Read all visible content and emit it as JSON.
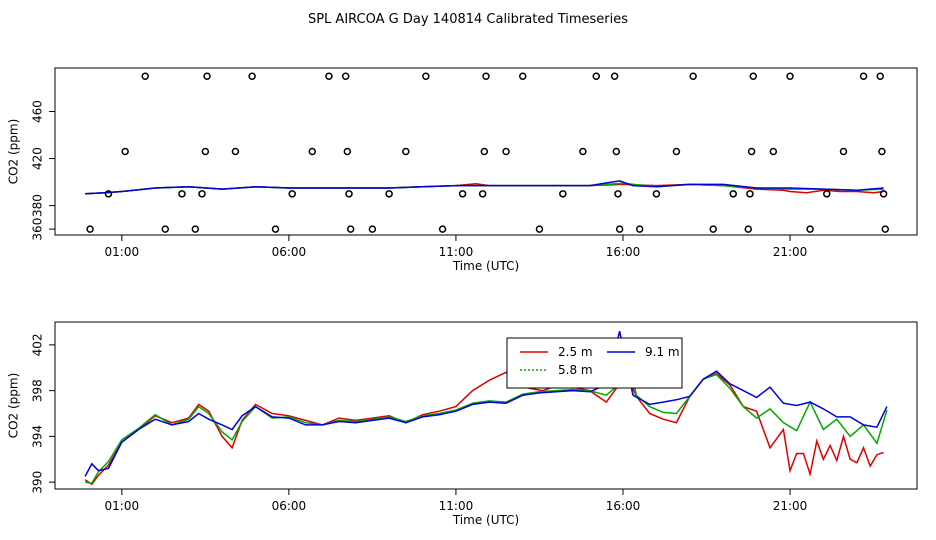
{
  "figure": {
    "title": "SPL AIRCOA G  Day 140814  Calibrated Timeseries"
  },
  "chart_data": [
    {
      "type": "scatter+line",
      "title": "",
      "xlabel": "Time (UTC)",
      "ylabel": "CO2 (ppm)",
      "xticks": [
        "01:00",
        "06:00",
        "11:00",
        "16:00",
        "21:00"
      ],
      "xtick_hours": [
        1,
        6,
        11,
        16,
        21
      ],
      "xlim": [
        -1.0,
        24.8
      ],
      "yticks": [
        360,
        380,
        420,
        460
      ],
      "ylim": [
        355,
        497
      ],
      "grid": false,
      "legend": "none",
      "scatter": {
        "marker": "open-circle",
        "color": "#000000",
        "points": [
          [
            0.05,
            360
          ],
          [
            0.6,
            390
          ],
          [
            1.1,
            426
          ],
          [
            1.7,
            490
          ],
          [
            2.3,
            360
          ],
          [
            2.8,
            390
          ],
          [
            3.2,
            360
          ],
          [
            3.4,
            390
          ],
          [
            3.5,
            426
          ],
          [
            3.55,
            490
          ],
          [
            4.4,
            426
          ],
          [
            4.9,
            490
          ],
          [
            5.6,
            360
          ],
          [
            6.1,
            390
          ],
          [
            6.7,
            426
          ],
          [
            7.2,
            490
          ],
          [
            7.7,
            490
          ],
          [
            7.75,
            426
          ],
          [
            7.8,
            390
          ],
          [
            7.85,
            360
          ],
          [
            8.5,
            360
          ],
          [
            9.0,
            390
          ],
          [
            9.5,
            426
          ],
          [
            10.1,
            490
          ],
          [
            10.6,
            360
          ],
          [
            11.2,
            390
          ],
          [
            11.8,
            390
          ],
          [
            11.85,
            426
          ],
          [
            11.9,
            490
          ],
          [
            12.5,
            426
          ],
          [
            13.0,
            490
          ],
          [
            13.5,
            360
          ],
          [
            14.2,
            390
          ],
          [
            14.8,
            426
          ],
          [
            15.2,
            490
          ],
          [
            15.75,
            490
          ],
          [
            15.8,
            426
          ],
          [
            15.85,
            390
          ],
          [
            15.9,
            360
          ],
          [
            16.5,
            360
          ],
          [
            17.0,
            390
          ],
          [
            17.6,
            426
          ],
          [
            18.1,
            490
          ],
          [
            18.7,
            360
          ],
          [
            19.3,
            390
          ],
          [
            19.75,
            360
          ],
          [
            19.8,
            390
          ],
          [
            19.85,
            426
          ],
          [
            19.9,
            490
          ],
          [
            20.5,
            426
          ],
          [
            21.0,
            490
          ],
          [
            21.6,
            360
          ],
          [
            22.1,
            390
          ],
          [
            22.6,
            426
          ],
          [
            23.2,
            490
          ],
          [
            23.7,
            490
          ],
          [
            23.75,
            426
          ],
          [
            23.8,
            390
          ],
          [
            23.85,
            360
          ]
        ]
      },
      "series": [
        {
          "name": "2.5 m",
          "color": "#dd0000",
          "x": [
            -0.1,
            0.5,
            1.0,
            2.0,
            3.0,
            4.0,
            5.0,
            6.0,
            7.0,
            8.0,
            9.0,
            10.0,
            11.0,
            11.6,
            12.0,
            13.0,
            14.0,
            15.0,
            16.0,
            17.0,
            18.0,
            19.0,
            20.0,
            20.8,
            21.0,
            21.5,
            22.0,
            22.5,
            23.0,
            23.5,
            23.8
          ],
          "y": [
            390,
            391,
            392,
            395,
            396,
            394,
            396,
            395,
            395,
            395,
            395,
            396,
            397,
            398.5,
            397,
            397,
            397,
            397,
            398,
            397,
            398,
            397,
            394,
            393,
            392,
            391,
            393,
            392,
            392,
            391,
            392
          ]
        },
        {
          "name": "5.8 m",
          "color": "#00aa00",
          "x": [
            -0.1,
            0.5,
            1.0,
            2.0,
            3.0,
            4.0,
            5.0,
            6.0,
            7.0,
            8.0,
            9.0,
            10.0,
            11.0,
            12.0,
            13.0,
            14.0,
            15.0,
            16.0,
            17.0,
            18.0,
            19.0,
            20.0,
            21.0,
            22.0,
            23.0,
            23.8
          ],
          "y": [
            390,
            391,
            392,
            395,
            396,
            394,
            396,
            395,
            395,
            395,
            395,
            396,
            397,
            397,
            397,
            397,
            397,
            399,
            396,
            398,
            397,
            395,
            394,
            394,
            393,
            394
          ]
        },
        {
          "name": "9.1 m",
          "color": "#0000dd",
          "x": [
            -0.1,
            0.5,
            1.0,
            2.0,
            3.0,
            4.0,
            5.0,
            6.0,
            7.0,
            8.0,
            9.0,
            10.0,
            11.0,
            12.0,
            13.0,
            14.0,
            15.0,
            15.9,
            16.3,
            17.0,
            18.0,
            19.0,
            20.0,
            21.0,
            22.0,
            23.0,
            23.8
          ],
          "y": [
            390,
            391,
            392,
            395,
            396,
            394,
            396,
            395,
            395,
            395,
            395,
            396,
            397,
            397,
            397,
            397,
            397,
            401,
            397,
            396,
            398,
            398,
            395,
            395,
            394,
            393,
            395
          ]
        }
      ]
    },
    {
      "type": "line",
      "title": "",
      "xlabel": "Time (UTC)",
      "ylabel": "CO2 (ppm)",
      "xticks": [
        "01:00",
        "06:00",
        "11:00",
        "16:00",
        "21:00"
      ],
      "xtick_hours": [
        1,
        6,
        11,
        16,
        21
      ],
      "xlim": [
        -1.0,
        24.8
      ],
      "yticks": [
        390,
        394,
        398,
        402
      ],
      "ylim": [
        389.4,
        404.0
      ],
      "grid": false,
      "legend": "top-center",
      "series": [
        {
          "name": "2.5 m",
          "color": "#dd0000",
          "x": [
            -0.1,
            0.1,
            0.3,
            0.6,
            1.0,
            1.5,
            2.0,
            2.5,
            3.0,
            3.3,
            3.6,
            4.0,
            4.3,
            4.6,
            5.0,
            5.5,
            6.0,
            6.5,
            7.0,
            7.5,
            8.0,
            8.5,
            9.0,
            9.5,
            10.0,
            10.5,
            11.0,
            11.5,
            12.0,
            12.5,
            12.8,
            13.2,
            13.6,
            14.0,
            14.5,
            15.0,
            15.5,
            15.9,
            16.1,
            16.4,
            16.8,
            17.2,
            17.6,
            18.0,
            18.4,
            18.8,
            19.2,
            19.6,
            20.0,
            20.4,
            20.8,
            21.0,
            21.2,
            21.4,
            21.6,
            21.8,
            22.0,
            22.2,
            22.4,
            22.6,
            22.8,
            23.0,
            23.2,
            23.4,
            23.6,
            23.8
          ],
          "y": [
            390.2,
            389.8,
            390.6,
            391.5,
            393.5,
            394.6,
            395.8,
            395.2,
            395.6,
            396.8,
            396.2,
            394.0,
            393.0,
            395.4,
            396.8,
            396.0,
            395.8,
            395.4,
            395.0,
            395.6,
            395.4,
            395.6,
            395.8,
            395.2,
            395.9,
            396.2,
            396.6,
            398.0,
            398.9,
            399.6,
            398.6,
            398.2,
            398.0,
            398.4,
            398.3,
            398.0,
            397.0,
            398.6,
            399.5,
            397.5,
            396.0,
            395.5,
            395.2,
            397.5,
            399.0,
            399.5,
            398.5,
            396.6,
            396.2,
            393.0,
            394.6,
            391.0,
            392.5,
            392.5,
            390.7,
            393.6,
            392.0,
            393.2,
            391.9,
            394.0,
            392.0,
            391.7,
            393.0,
            391.4,
            392.4,
            392.6
          ]
        },
        {
          "name": "5.8 m",
          "color": "#00aa00",
          "x": [
            -0.1,
            0.1,
            0.3,
            0.6,
            1.0,
            1.5,
            2.0,
            2.5,
            3.0,
            3.3,
            3.6,
            4.0,
            4.3,
            4.6,
            5.0,
            5.5,
            6.0,
            6.5,
            7.0,
            7.5,
            8.0,
            8.5,
            9.0,
            9.5,
            10.0,
            10.5,
            11.0,
            11.5,
            12.0,
            12.5,
            13.0,
            13.5,
            14.0,
            14.5,
            15.0,
            15.5,
            15.9,
            16.1,
            16.4,
            16.8,
            17.2,
            17.6,
            18.0,
            18.4,
            18.8,
            19.2,
            19.6,
            20.0,
            20.4,
            20.8,
            21.2,
            21.6,
            22.0,
            22.4,
            22.8,
            23.2,
            23.6,
            23.9
          ],
          "y": [
            390.0,
            389.9,
            390.9,
            391.8,
            393.7,
            394.7,
            395.9,
            395.0,
            395.5,
            396.6,
            396.0,
            394.4,
            393.7,
            395.3,
            396.6,
            395.6,
            395.7,
            395.2,
            395.0,
            395.4,
            395.3,
            395.5,
            395.7,
            395.3,
            395.8,
            396.0,
            396.3,
            396.9,
            397.1,
            397.0,
            397.7,
            397.9,
            398.0,
            398.1,
            398.0,
            397.6,
            398.6,
            402.0,
            397.6,
            396.6,
            396.1,
            396.0,
            397.5,
            399.0,
            399.4,
            398.2,
            396.6,
            395.6,
            396.4,
            395.2,
            394.5,
            397.0,
            394.6,
            395.5,
            394.0,
            395.0,
            393.4,
            396.3
          ]
        },
        {
          "name": "9.1 m",
          "color": "#0000dd",
          "x": [
            -0.1,
            0.1,
            0.3,
            0.6,
            1.0,
            1.5,
            2.0,
            2.5,
            3.0,
            3.3,
            3.6,
            4.0,
            4.3,
            4.6,
            5.0,
            5.5,
            6.0,
            6.5,
            7.0,
            7.5,
            8.0,
            8.5,
            9.0,
            9.5,
            10.0,
            10.5,
            11.0,
            11.5,
            12.0,
            12.5,
            13.0,
            13.5,
            14.0,
            14.5,
            15.0,
            15.5,
            15.9,
            16.3,
            16.8,
            17.2,
            17.6,
            18.0,
            18.4,
            18.8,
            19.2,
            19.6,
            20.0,
            20.4,
            20.8,
            21.2,
            21.6,
            22.0,
            22.4,
            22.8,
            23.2,
            23.6,
            23.9
          ],
          "y": [
            390.5,
            391.6,
            391.0,
            391.2,
            393.5,
            394.6,
            395.5,
            395.0,
            395.3,
            396.0,
            395.5,
            395.0,
            394.6,
            395.8,
            396.6,
            395.7,
            395.6,
            395.0,
            395.0,
            395.3,
            395.2,
            395.4,
            395.6,
            395.2,
            395.7,
            395.9,
            396.2,
            396.8,
            397.0,
            396.9,
            397.6,
            397.8,
            397.9,
            398.0,
            397.9,
            398.5,
            403.2,
            397.6,
            396.8,
            397.0,
            397.2,
            397.5,
            399.0,
            399.7,
            398.6,
            398.0,
            397.4,
            398.3,
            396.9,
            396.7,
            397.0,
            396.4,
            395.7,
            395.7,
            395.0,
            394.8,
            396.6
          ]
        }
      ]
    }
  ]
}
